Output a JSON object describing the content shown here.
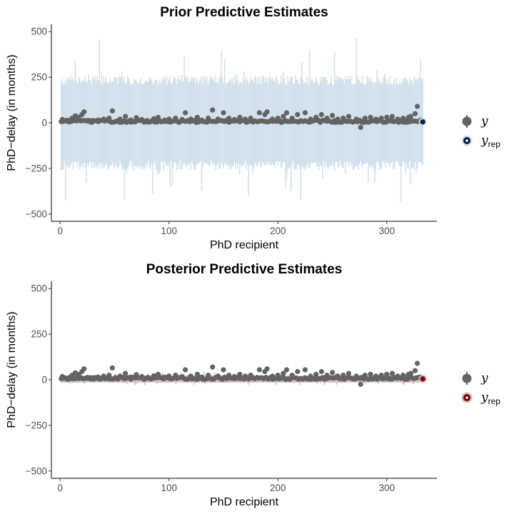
{
  "colors": {
    "prior_band": "#d1e1ec",
    "posterior_band": "#dcbcbc",
    "prior_yrep": "#011f4b",
    "posterior_yrep": "#7c0000",
    "y_point": "#636363",
    "axis": "#000000"
  },
  "chart_data": [
    {
      "type": "scatter",
      "title": "Prior Predictive Estimates",
      "xlabel": "PhD recipient",
      "ylabel": "PhD−delay (in months)",
      "xlim": [
        -8,
        346
      ],
      "ylim": [
        -540,
        540
      ],
      "x_ticks": [
        0,
        100,
        200,
        300
      ],
      "x_tick_labels": [
        "0",
        "100",
        "200",
        "300"
      ],
      "y_ticks": [
        -500,
        -250,
        0,
        250,
        500
      ],
      "y_tick_labels": [
        "−500",
        "−250",
        "0",
        "250",
        "500"
      ],
      "grid": false,
      "legend_position": "right",
      "legend": [
        {
          "label": "y",
          "sub": "",
          "marker": "y-point"
        },
        {
          "label": "y",
          "sub": "rep",
          "marker": "yrep-point"
        }
      ],
      "n_obs": 333,
      "interval": {
        "typical_low": -230,
        "typical_high": 230,
        "max_low": -430,
        "max_high": 480
      },
      "observed_y": [
        [
          2,
          18
        ],
        [
          5,
          10
        ],
        [
          8,
          5
        ],
        [
          11,
          25
        ],
        [
          14,
          38
        ],
        [
          17,
          30
        ],
        [
          20,
          45
        ],
        [
          22,
          60
        ],
        [
          26,
          8
        ],
        [
          30,
          12
        ],
        [
          35,
          15
        ],
        [
          40,
          20
        ],
        [
          45,
          25
        ],
        [
          48,
          65
        ],
        [
          55,
          20
        ],
        [
          60,
          35
        ],
        [
          65,
          15
        ],
        [
          70,
          28
        ],
        [
          75,
          18
        ],
        [
          80,
          12
        ],
        [
          86,
          22
        ],
        [
          90,
          30
        ],
        [
          96,
          15
        ],
        [
          100,
          20
        ],
        [
          106,
          25
        ],
        [
          112,
          18
        ],
        [
          115,
          55
        ],
        [
          120,
          20
        ],
        [
          126,
          30
        ],
        [
          130,
          15
        ],
        [
          136,
          25
        ],
        [
          140,
          70
        ],
        [
          145,
          20
        ],
        [
          150,
          55
        ],
        [
          155,
          25
        ],
        [
          160,
          18
        ],
        [
          165,
          30
        ],
        [
          170,
          20
        ],
        [
          175,
          25
        ],
        [
          183,
          55
        ],
        [
          188,
          45
        ],
        [
          190,
          60
        ],
        [
          195,
          20
        ],
        [
          200,
          25
        ],
        [
          205,
          35
        ],
        [
          208,
          55
        ],
        [
          213,
          25
        ],
        [
          218,
          45
        ],
        [
          225,
          55
        ],
        [
          230,
          20
        ],
        [
          235,
          30
        ],
        [
          240,
          45
        ],
        [
          245,
          25
        ],
        [
          250,
          40
        ],
        [
          255,
          20
        ],
        [
          260,
          25
        ],
        [
          265,
          35
        ],
        [
          272,
          20
        ],
        [
          276,
          -25
        ],
        [
          280,
          25
        ],
        [
          285,
          30
        ],
        [
          290,
          20
        ],
        [
          295,
          25
        ],
        [
          300,
          30
        ],
        [
          305,
          35
        ],
        [
          310,
          20
        ],
        [
          315,
          25
        ],
        [
          320,
          30
        ],
        [
          322,
          35
        ],
        [
          326,
          50
        ],
        [
          328,
          90
        ],
        [
          331,
          15
        ],
        [
          3,
          12
        ],
        [
          28,
          5
        ],
        [
          52,
          10
        ],
        [
          78,
          8
        ],
        [
          102,
          6
        ],
        [
          128,
          10
        ],
        [
          152,
          12
        ],
        [
          178,
          8
        ],
        [
          202,
          10
        ],
        [
          228,
          6
        ],
        [
          252,
          12
        ],
        [
          278,
          8
        ],
        [
          302,
          10
        ],
        [
          318,
          12
        ]
      ],
      "yrep_marker": [
        333,
        5
      ]
    },
    {
      "type": "scatter",
      "title": "Posterior Predictive Estimates",
      "xlabel": "PhD recipient",
      "ylabel": "PhD−delay (in months)",
      "xlim": [
        -8,
        346
      ],
      "ylim": [
        -540,
        540
      ],
      "x_ticks": [
        0,
        100,
        200,
        300
      ],
      "x_tick_labels": [
        "0",
        "100",
        "200",
        "300"
      ],
      "y_ticks": [
        -500,
        -250,
        0,
        250,
        500
      ],
      "y_tick_labels": [
        "−500",
        "−250",
        "0",
        "250",
        "500"
      ],
      "grid": false,
      "legend_position": "right",
      "legend": [
        {
          "label": "y",
          "sub": "",
          "marker": "y-point"
        },
        {
          "label": "y",
          "sub": "rep",
          "marker": "yrep-point"
        }
      ],
      "n_obs": 333,
      "interval": {
        "typical_low": -15,
        "typical_high": 22,
        "max_low": -30,
        "max_high": 45
      },
      "observed_y": [
        [
          2,
          18
        ],
        [
          5,
          10
        ],
        [
          8,
          5
        ],
        [
          11,
          25
        ],
        [
          14,
          38
        ],
        [
          17,
          30
        ],
        [
          20,
          45
        ],
        [
          22,
          60
        ],
        [
          26,
          8
        ],
        [
          30,
          12
        ],
        [
          35,
          15
        ],
        [
          40,
          20
        ],
        [
          45,
          25
        ],
        [
          48,
          65
        ],
        [
          55,
          20
        ],
        [
          60,
          35
        ],
        [
          65,
          15
        ],
        [
          70,
          28
        ],
        [
          75,
          18
        ],
        [
          80,
          12
        ],
        [
          86,
          22
        ],
        [
          90,
          30
        ],
        [
          96,
          15
        ],
        [
          100,
          20
        ],
        [
          106,
          25
        ],
        [
          112,
          18
        ],
        [
          115,
          55
        ],
        [
          120,
          20
        ],
        [
          126,
          30
        ],
        [
          130,
          15
        ],
        [
          136,
          25
        ],
        [
          140,
          70
        ],
        [
          145,
          20
        ],
        [
          150,
          55
        ],
        [
          155,
          25
        ],
        [
          160,
          18
        ],
        [
          165,
          30
        ],
        [
          170,
          20
        ],
        [
          175,
          25
        ],
        [
          183,
          55
        ],
        [
          188,
          45
        ],
        [
          190,
          60
        ],
        [
          195,
          20
        ],
        [
          200,
          25
        ],
        [
          205,
          35
        ],
        [
          208,
          55
        ],
        [
          213,
          25
        ],
        [
          218,
          45
        ],
        [
          225,
          55
        ],
        [
          230,
          20
        ],
        [
          235,
          30
        ],
        [
          240,
          45
        ],
        [
          245,
          25
        ],
        [
          250,
          40
        ],
        [
          255,
          20
        ],
        [
          260,
          25
        ],
        [
          265,
          35
        ],
        [
          272,
          20
        ],
        [
          276,
          -25
        ],
        [
          280,
          25
        ],
        [
          285,
          30
        ],
        [
          290,
          20
        ],
        [
          295,
          25
        ],
        [
          300,
          30
        ],
        [
          305,
          35
        ],
        [
          310,
          20
        ],
        [
          315,
          25
        ],
        [
          320,
          30
        ],
        [
          322,
          35
        ],
        [
          326,
          50
        ],
        [
          328,
          90
        ],
        [
          331,
          15
        ],
        [
          3,
          12
        ],
        [
          28,
          5
        ],
        [
          52,
          10
        ],
        [
          78,
          8
        ],
        [
          102,
          6
        ],
        [
          128,
          10
        ],
        [
          152,
          12
        ],
        [
          178,
          8
        ],
        [
          202,
          10
        ],
        [
          228,
          6
        ],
        [
          252,
          12
        ],
        [
          278,
          8
        ],
        [
          302,
          10
        ],
        [
          318,
          12
        ]
      ],
      "yrep_marker": [
        333,
        5
      ]
    }
  ]
}
